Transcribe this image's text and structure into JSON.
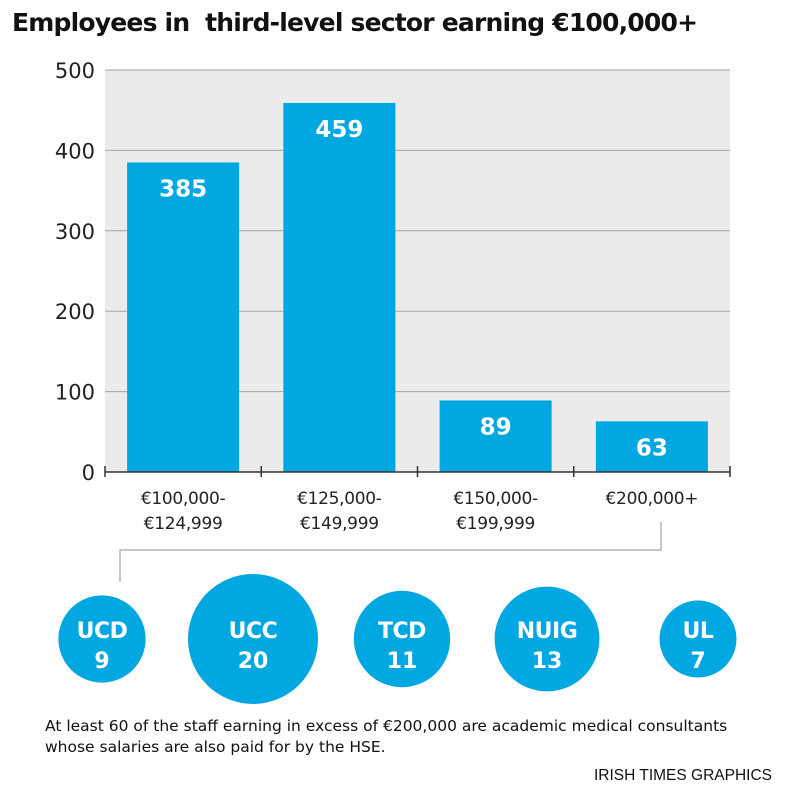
{
  "chart_data": {
    "type": "bar",
    "title": "Employees in  third-level sector earning €100,000+",
    "categories": [
      [
        "€100,000-",
        "€124,999"
      ],
      [
        "€125,000-",
        "€149,999"
      ],
      [
        "€150,000-",
        "€199,999"
      ],
      [
        "€200,000+"
      ]
    ],
    "values": [
      385,
      459,
      89,
      63
    ],
    "data_labels": [
      "385",
      "459",
      "89",
      "63"
    ],
    "ylim": [
      0,
      500
    ],
    "yticks": [
      0,
      100,
      200,
      300,
      400,
      500
    ],
    "grid": true,
    "bar_color": "#00a7e1",
    "plot_background": "#ebebeb"
  },
  "breakdown": {
    "of_category": "€200,000+",
    "bubble_color": "#00a7e1",
    "items": [
      {
        "name": "UCD",
        "value": 9
      },
      {
        "name": "UCC",
        "value": 20
      },
      {
        "name": "TCD",
        "value": 11
      },
      {
        "name": "NUIG",
        "value": 13
      },
      {
        "name": "UL",
        "value": 7
      }
    ]
  },
  "note": "At least 60 of the staff earning in excess of €200,000 are academic medical consultants whose salaries are also paid for by the HSE.",
  "source": "IRISH TIMES GRAPHICS"
}
